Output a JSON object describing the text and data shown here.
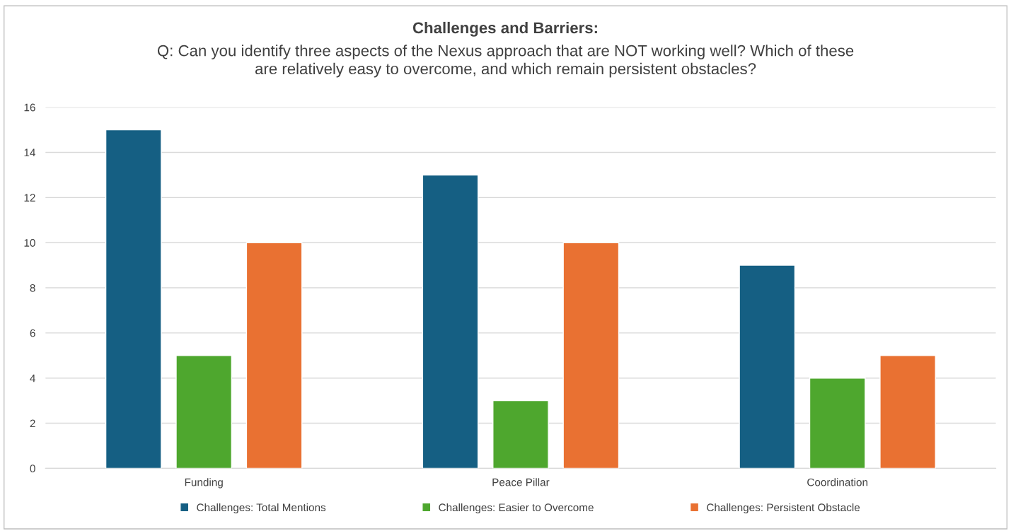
{
  "chart_data": {
    "type": "bar",
    "title": "Challenges and Barriers:",
    "subtitle": "Q: Can you identify three aspects of the Nexus approach that are NOT working well? Which of these\nare relatively easy to overcome, and which remain persistent obstacles?",
    "categories": [
      "Funding",
      "Peace Pillar",
      "Coordination"
    ],
    "series": [
      {
        "name": "Challenges: Total Mentions",
        "color": "#155f83",
        "values": [
          15,
          13,
          9
        ]
      },
      {
        "name": "Challenges: Easier to Overcome",
        "color": "#4ea72e",
        "values": [
          5,
          3,
          4
        ]
      },
      {
        "name": "Challenges: Persistent Obstacle",
        "color": "#e97132",
        "values": [
          10,
          10,
          5
        ]
      }
    ],
    "ylim": [
      0,
      16
    ],
    "yticks": [
      0,
      2,
      4,
      6,
      8,
      10,
      12,
      14,
      16
    ],
    "grid": "y",
    "legend": "bottom"
  }
}
